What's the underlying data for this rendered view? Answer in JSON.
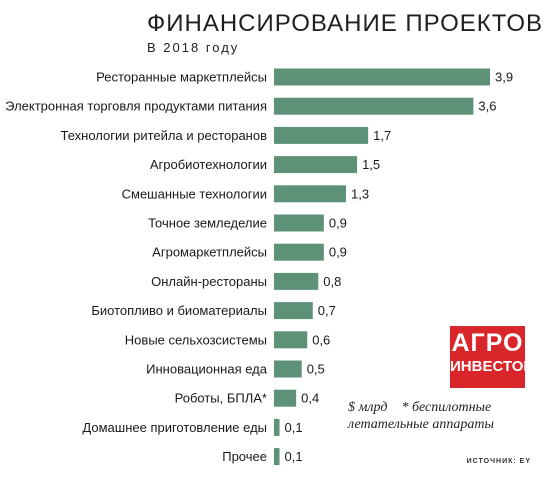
{
  "title": "ФИНАНСИРОВАНИЕ ПРОЕКТОВ",
  "subtitle": "В 2018 году",
  "logo": {
    "line1": "АГРО",
    "line2": "ИНВЕСТОР"
  },
  "note": {
    "unit": "$ млрд",
    "footnote": "* беспилотные летательные аппараты"
  },
  "source": "ИСТОЧНИК: EY",
  "colors": {
    "bar": "#5d9178",
    "logo_bg": "#d9262b"
  },
  "chart_data": {
    "type": "bar",
    "orientation": "horizontal",
    "categories": [
      "Ресторанные маркетплейсы",
      "Электронная торговля продуктами питания",
      "Технологии ритейла и ресторанов",
      "Агробиотехнологии",
      "Смешанные технологии",
      "Точное земледелие",
      "Агромаркетплейсы",
      "Онлайн-рестораны",
      "Биотопливо и биоматериалы",
      "Новые сельхозсистемы",
      "Инновационная еда",
      "Роботы, БПЛА*",
      "Домашнее приготовление еды",
      "Прочее"
    ],
    "values": [
      3.9,
      3.6,
      1.7,
      1.5,
      1.3,
      0.9,
      0.9,
      0.8,
      0.7,
      0.6,
      0.5,
      0.4,
      0.1,
      0.1
    ],
    "value_labels": [
      "3,9",
      "3,6",
      "1,7",
      "1,5",
      "1,3",
      "0,9",
      "0,9",
      "0,8",
      "0,7",
      "0,6",
      "0,5",
      "0,4",
      "0,1",
      "0,1"
    ],
    "title": "ФИНАНСИРОВАНИЕ ПРОЕКТОВ",
    "xlabel": "",
    "ylabel": "",
    "xlim": [
      0,
      3.9
    ],
    "grid": false
  }
}
